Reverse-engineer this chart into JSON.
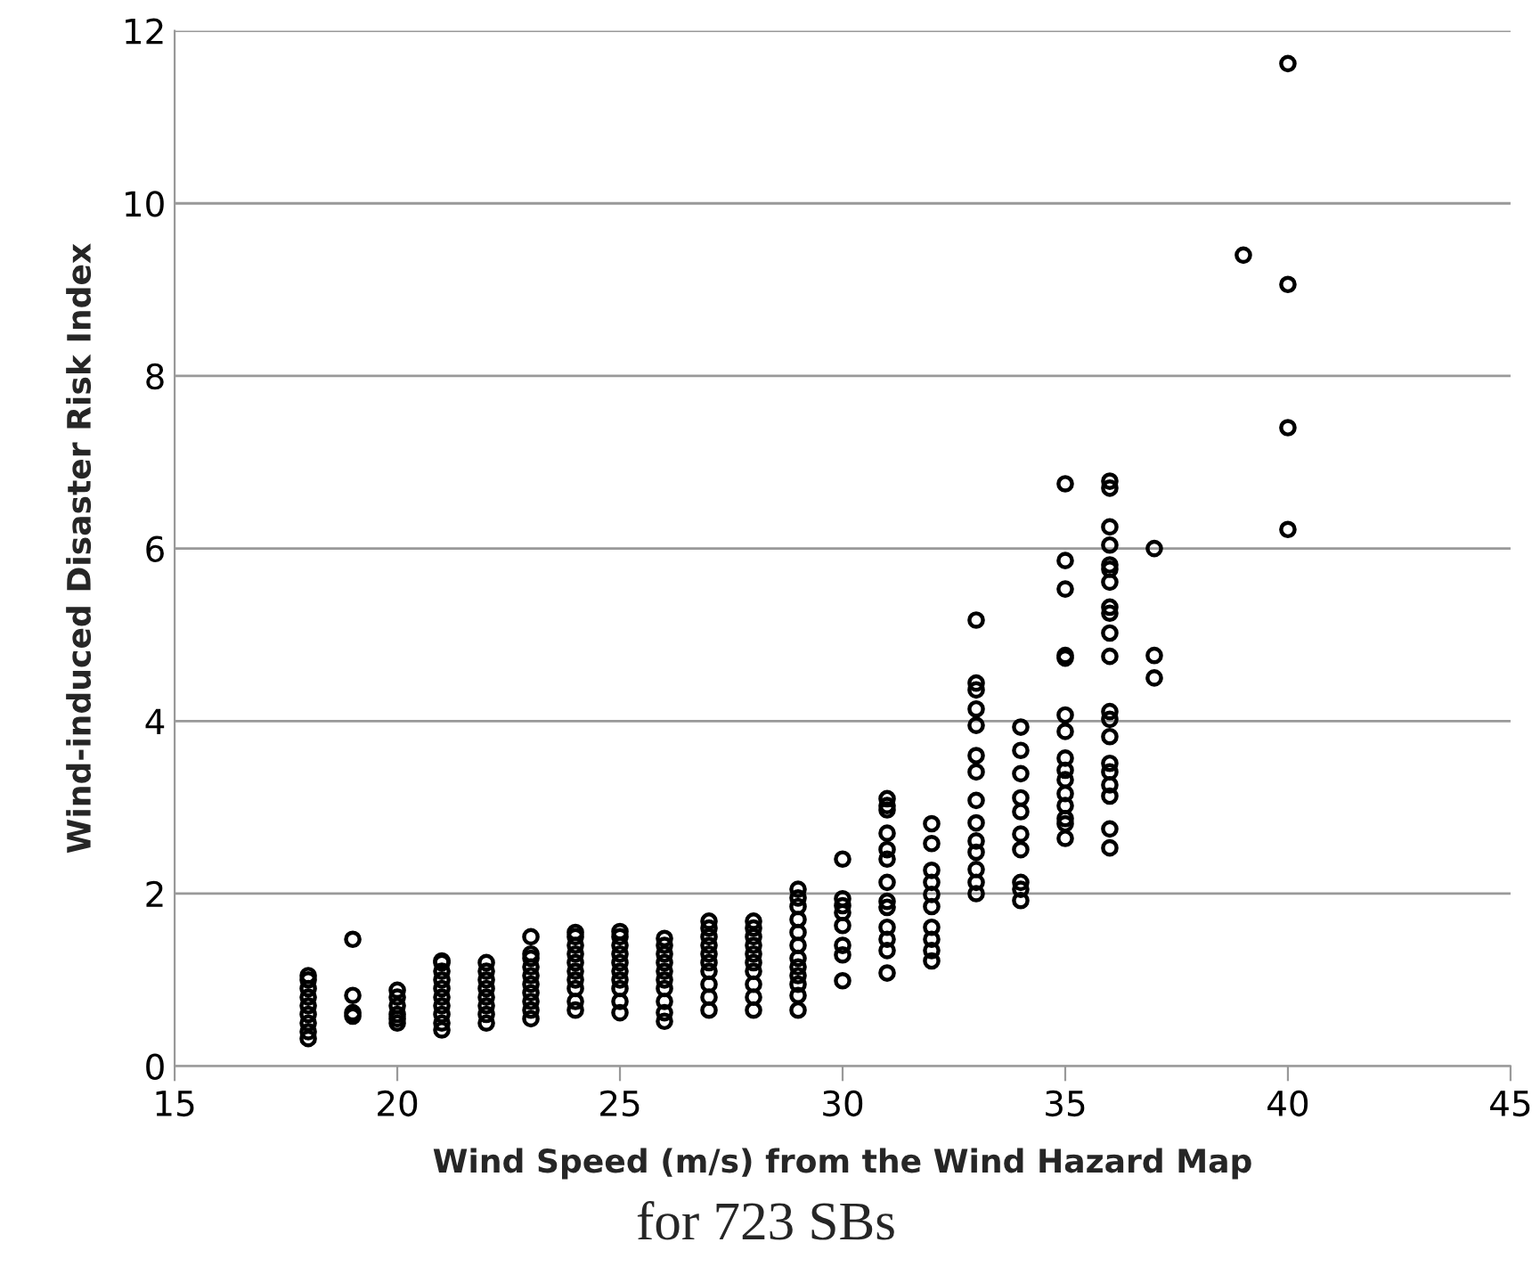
{
  "chart_data": {
    "type": "scatter",
    "xlabel": "Wind Speed (m/s) from the Wind Hazard Map",
    "ylabel": "Wind-induced Disaster Risk Index",
    "annotations": [
      "for 723 SBs"
    ],
    "x": [
      18,
      18,
      18,
      18,
      18,
      18,
      18,
      18,
      18,
      19,
      19,
      19,
      19,
      20,
      20,
      20,
      20,
      20,
      20,
      21,
      21,
      21,
      21,
      21,
      21,
      21,
      21,
      21,
      21,
      22,
      22,
      22,
      22,
      22,
      22,
      22,
      22,
      23,
      23,
      23,
      23,
      23,
      23,
      23,
      23,
      23,
      23,
      24,
      24,
      24,
      24,
      24,
      24,
      24,
      24,
      24,
      24,
      25,
      25,
      25,
      25,
      25,
      25,
      25,
      25,
      25,
      25,
      26,
      26,
      26,
      26,
      26,
      26,
      26,
      26,
      26,
      26,
      27,
      27,
      27,
      27,
      27,
      27,
      27,
      27,
      27,
      27,
      28,
      28,
      28,
      28,
      28,
      28,
      28,
      28,
      28,
      28,
      29,
      29,
      29,
      29,
      29,
      29,
      29,
      29,
      29,
      29,
      29,
      29,
      30,
      30,
      30,
      30,
      30,
      30,
      30,
      30,
      31,
      31,
      31,
      31,
      31,
      31,
      31,
      31,
      31,
      31,
      31,
      31,
      31,
      32,
      32,
      32,
      32,
      32,
      32,
      32,
      32,
      32,
      32,
      33,
      33,
      33,
      33,
      33,
      33,
      33,
      33,
      33,
      33,
      33,
      33,
      33,
      33,
      34,
      34,
      34,
      34,
      34,
      34,
      34,
      34,
      34,
      34,
      35,
      35,
      35,
      35,
      35,
      35,
      35,
      35,
      35,
      35,
      35,
      35,
      35,
      35,
      35,
      36,
      36,
      36,
      36,
      36,
      36,
      36,
      36,
      36,
      36,
      36,
      36,
      36,
      36,
      36,
      36,
      36,
      36,
      36,
      36,
      37,
      37,
      37,
      39,
      40,
      40,
      40,
      40
    ],
    "series": [
      {
        "color": "#000000",
        "values": [
          0.32,
          0.4,
          0.5,
          0.6,
          0.7,
          0.8,
          0.9,
          1.0,
          1.05,
          0.58,
          0.62,
          0.82,
          1.47,
          0.5,
          0.55,
          0.6,
          0.7,
          0.8,
          0.88,
          0.42,
          0.5,
          0.6,
          0.7,
          0.8,
          0.9,
          1.0,
          1.1,
          1.2,
          1.22,
          0.5,
          0.6,
          0.7,
          0.8,
          0.9,
          1.0,
          1.1,
          1.2,
          0.55,
          0.65,
          0.75,
          0.85,
          0.95,
          1.05,
          1.15,
          1.25,
          1.3,
          1.5,
          0.65,
          0.75,
          0.9,
          1.0,
          1.1,
          1.2,
          1.3,
          1.4,
          1.5,
          1.55,
          0.62,
          0.75,
          0.9,
          1.0,
          1.1,
          1.2,
          1.3,
          1.4,
          1.5,
          1.56,
          0.52,
          0.62,
          0.75,
          0.9,
          1.0,
          1.1,
          1.2,
          1.3,
          1.4,
          1.48,
          0.65,
          0.8,
          0.95,
          1.1,
          1.2,
          1.3,
          1.4,
          1.5,
          1.6,
          1.68,
          0.65,
          0.8,
          0.95,
          1.1,
          1.2,
          1.3,
          1.4,
          1.5,
          1.6,
          1.68,
          0.65,
          0.82,
          0.95,
          1.05,
          1.15,
          1.25,
          1.4,
          1.55,
          1.7,
          1.85,
          1.95,
          2.05,
          2.4,
          1.94,
          1.86,
          1.78,
          1.63,
          1.4,
          1.29,
          0.99,
          3.1,
          3.02,
          2.97,
          2.7,
          2.51,
          2.4,
          2.13,
          1.91,
          1.84,
          1.61,
          1.47,
          1.34,
          1.08,
          2.81,
          2.58,
          2.27,
          2.13,
          1.99,
          1.85,
          1.61,
          1.47,
          1.34,
          1.22,
          5.17,
          4.44,
          4.36,
          4.14,
          3.95,
          3.6,
          3.41,
          3.08,
          2.82,
          2.61,
          2.48,
          2.28,
          2.13,
          2.0,
          3.93,
          3.66,
          3.39,
          3.11,
          2.95,
          2.69,
          2.51,
          2.13,
          2.05,
          1.92,
          6.75,
          5.86,
          5.53,
          4.76,
          4.73,
          4.07,
          3.88,
          3.57,
          3.43,
          3.32,
          3.16,
          3.02,
          2.87,
          2.81,
          2.64,
          6.78,
          6.7,
          6.25,
          6.04,
          5.81,
          5.76,
          5.61,
          5.32,
          5.25,
          5.02,
          4.75,
          4.11,
          4.02,
          3.82,
          3.51,
          3.41,
          3.26,
          3.13,
          2.75,
          2.53,
          6.0,
          4.76,
          4.5,
          9.4,
          11.62,
          9.06,
          7.4,
          6.22
        ]
      }
    ],
    "xlim": [
      15,
      45
    ],
    "xticks": [
      15,
      20,
      25,
      30,
      35,
      40,
      45
    ],
    "ylim": [
      0,
      12
    ],
    "yticks": [
      0,
      2,
      4,
      6,
      8,
      10,
      12
    ],
    "grid": "y",
    "marker": "circle",
    "legend": false
  }
}
